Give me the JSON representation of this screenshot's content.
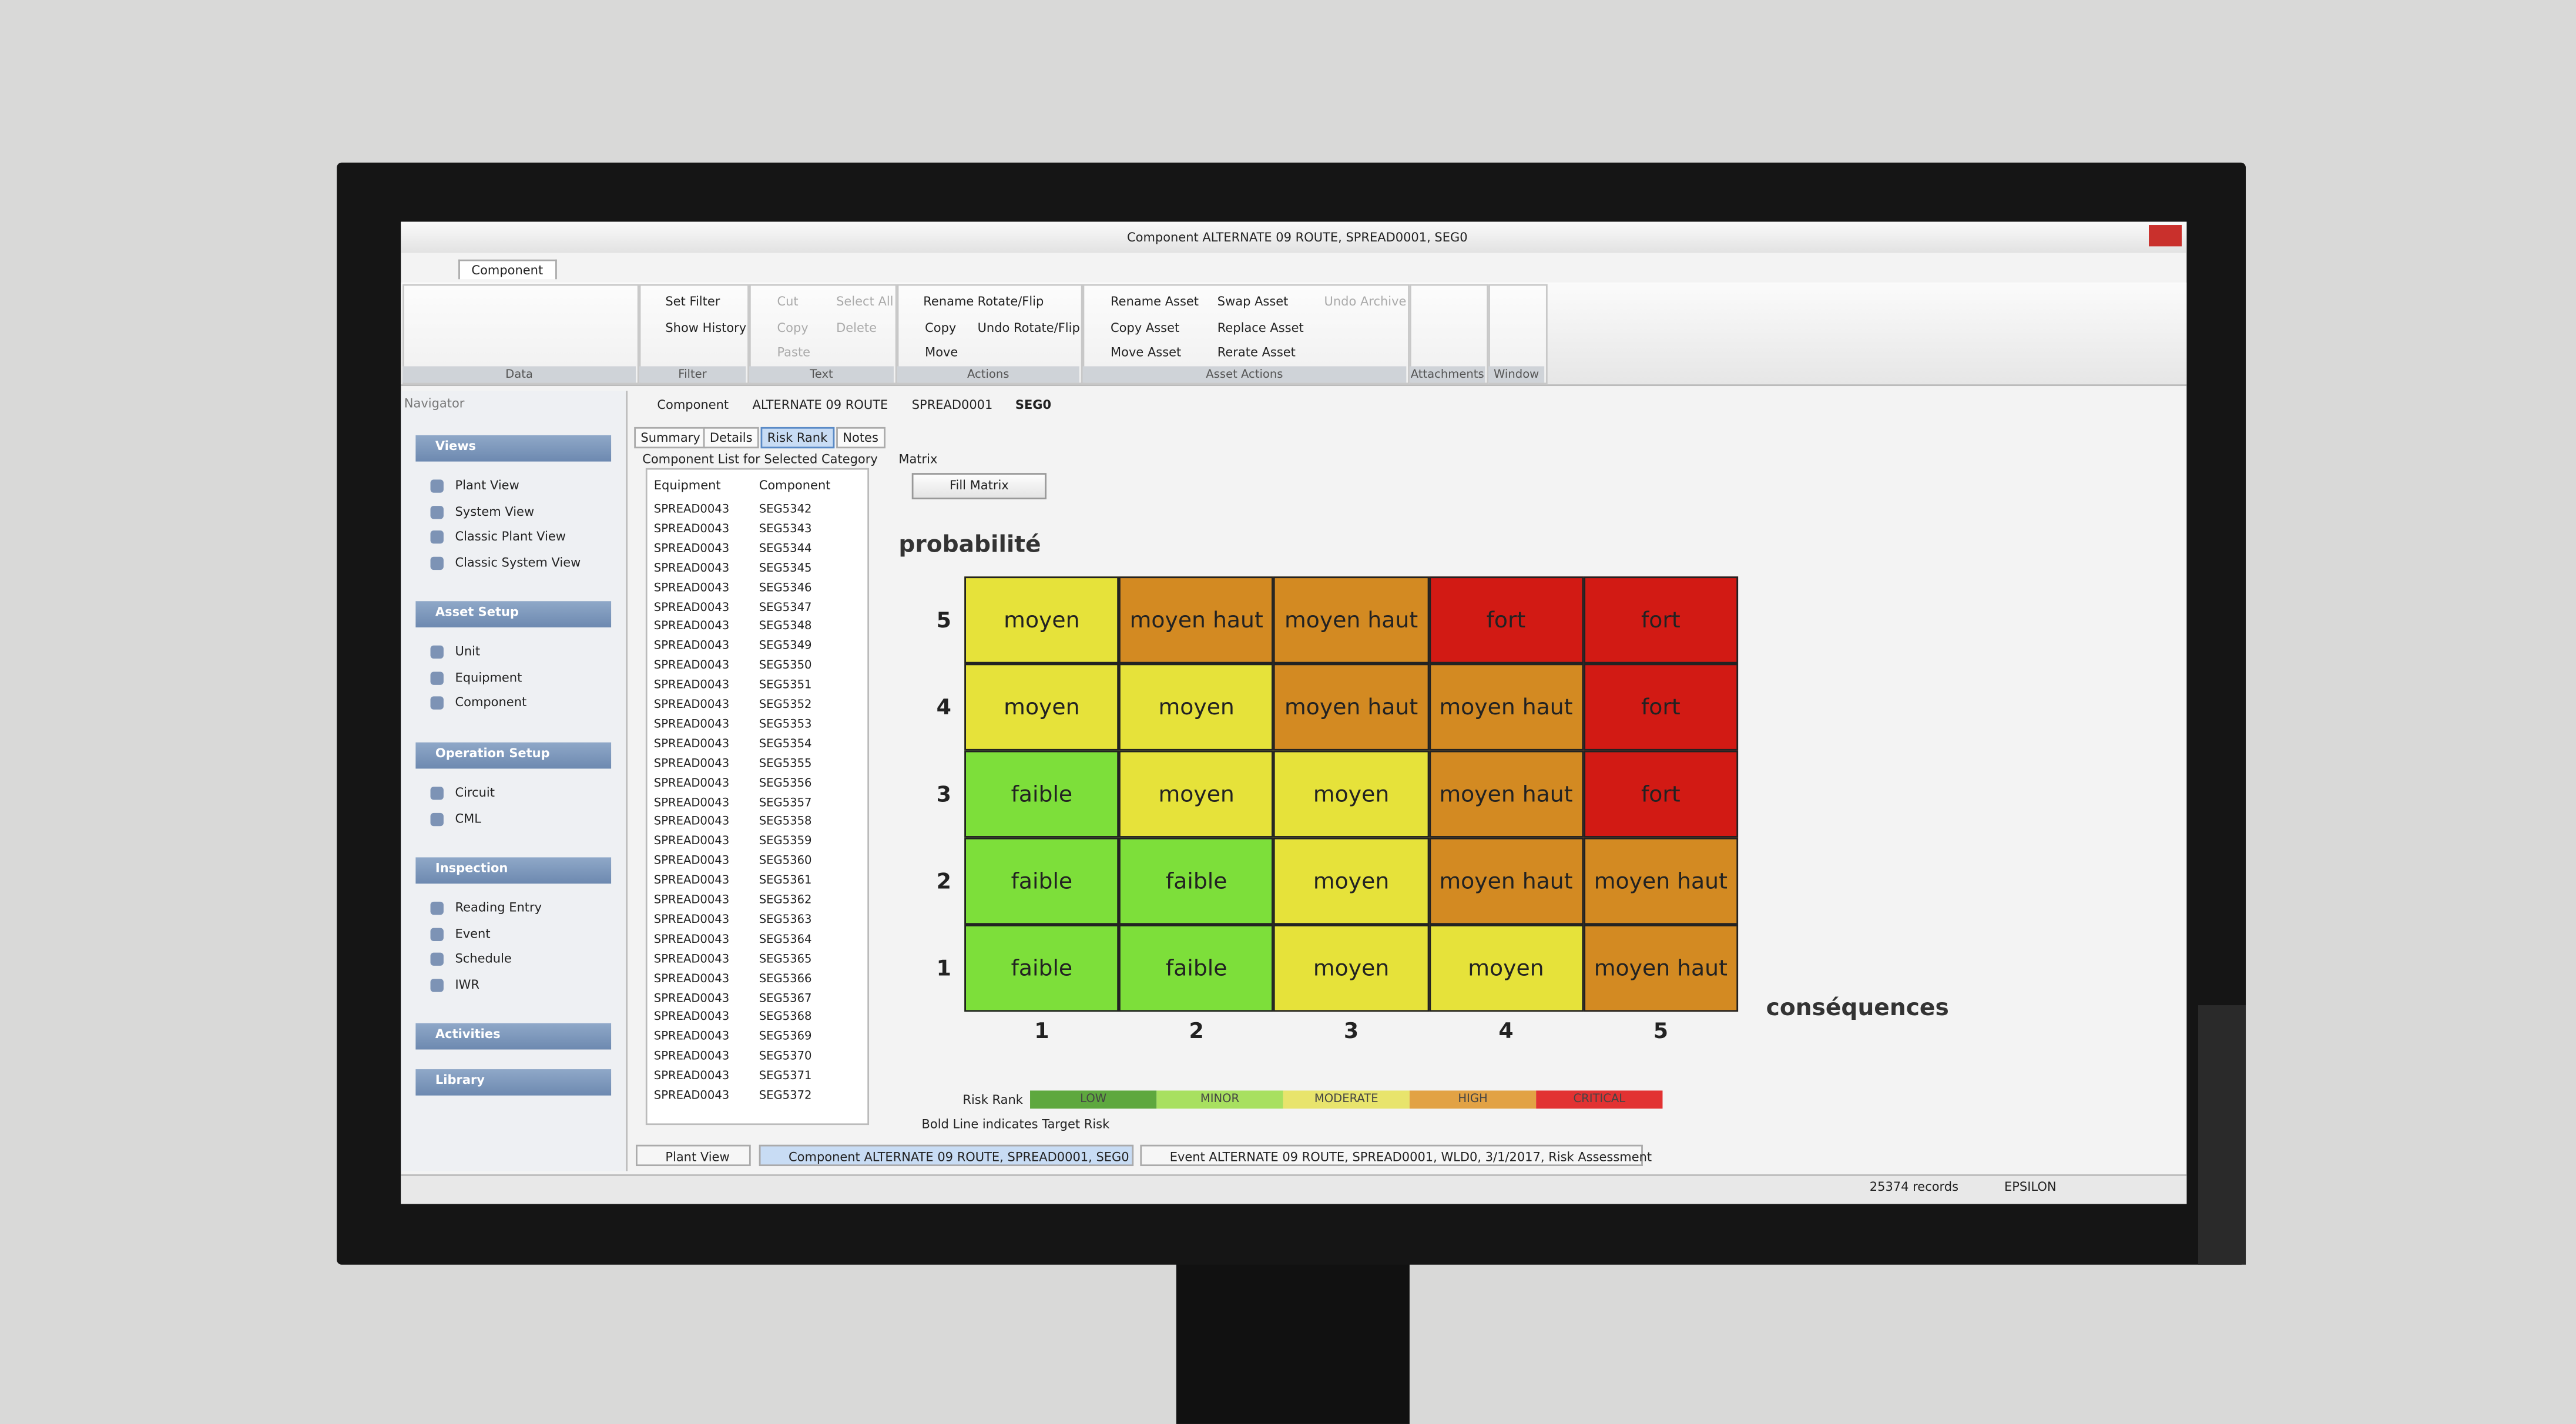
{
  "window": {
    "title": "Component  ALTERNATE 09 ROUTE, SPREAD0001, SEG0"
  },
  "ribbon": {
    "tab": "Component",
    "groups": [
      {
        "label": "Data",
        "items": []
      },
      {
        "label": "Filter",
        "items": [
          "Set Filter",
          "Show History"
        ]
      },
      {
        "label": "Text",
        "items": [
          "Cut",
          "Select All",
          "Copy",
          "Delete",
          "Paste"
        ]
      },
      {
        "label": "Actions",
        "items": [
          "Rename",
          "Rotate/Flip",
          "Copy",
          "Undo Rotate/Flip",
          "Move"
        ]
      },
      {
        "label": "Asset Actions",
        "items": [
          "Rename Asset",
          "Swap Asset",
          "Undo Archive",
          "Copy Asset",
          "Replace Asset",
          "Move Asset",
          "Rerate Asset"
        ]
      },
      {
        "label": "Attachments",
        "items": []
      },
      {
        "label": "Window",
        "items": []
      }
    ]
  },
  "navigator": {
    "title": "Navigator",
    "sections": [
      {
        "title": "Views",
        "items": [
          "Plant View",
          "System View",
          "Classic Plant View",
          "Classic System View"
        ]
      },
      {
        "title": "Asset Setup",
        "items": [
          "Unit",
          "Equipment",
          "Component"
        ]
      },
      {
        "title": "Operation Setup",
        "items": [
          "Circuit",
          "CML"
        ]
      },
      {
        "title": "Inspection",
        "items": [
          "Reading Entry",
          "Event",
          "Schedule",
          "IWR"
        ]
      },
      {
        "title": "Activities",
        "items": []
      },
      {
        "title": "Library",
        "items": []
      }
    ]
  },
  "breadcrumb": [
    "Component",
    "ALTERNATE 09 ROUTE",
    "SPREAD0001",
    "SEG0"
  ],
  "tabs": [
    "Summary",
    "Details",
    "Risk Rank",
    "Notes"
  ],
  "component_list": {
    "title": "Component List for Selected Category",
    "headers": [
      "Equipment",
      "Component"
    ],
    "rows": [
      [
        "SPREAD0043",
        "SEG5342"
      ],
      [
        "SPREAD0043",
        "SEG5343"
      ],
      [
        "SPREAD0043",
        "SEG5344"
      ],
      [
        "SPREAD0043",
        "SEG5345"
      ],
      [
        "SPREAD0043",
        "SEG5346"
      ],
      [
        "SPREAD0043",
        "SEG5347"
      ],
      [
        "SPREAD0043",
        "SEG5348"
      ],
      [
        "SPREAD0043",
        "SEG5349"
      ],
      [
        "SPREAD0043",
        "SEG5350"
      ],
      [
        "SPREAD0043",
        "SEG5351"
      ],
      [
        "SPREAD0043",
        "SEG5352"
      ],
      [
        "SPREAD0043",
        "SEG5353"
      ],
      [
        "SPREAD0043",
        "SEG5354"
      ],
      [
        "SPREAD0043",
        "SEG5355"
      ],
      [
        "SPREAD0043",
        "SEG5356"
      ],
      [
        "SPREAD0043",
        "SEG5357"
      ],
      [
        "SPREAD0043",
        "SEG5358"
      ],
      [
        "SPREAD0043",
        "SEG5359"
      ],
      [
        "SPREAD0043",
        "SEG5360"
      ],
      [
        "SPREAD0043",
        "SEG5361"
      ],
      [
        "SPREAD0043",
        "SEG5362"
      ],
      [
        "SPREAD0043",
        "SEG5363"
      ],
      [
        "SPREAD0043",
        "SEG5364"
      ],
      [
        "SPREAD0043",
        "SEG5365"
      ],
      [
        "SPREAD0043",
        "SEG5366"
      ],
      [
        "SPREAD0043",
        "SEG5367"
      ],
      [
        "SPREAD0043",
        "SEG5368"
      ],
      [
        "SPREAD0043",
        "SEG5369"
      ],
      [
        "SPREAD0043",
        "SEG5370"
      ],
      [
        "SPREAD0043",
        "SEG5371"
      ],
      [
        "SPREAD0043",
        "SEG5372"
      ]
    ]
  },
  "matrix": {
    "label": "Matrix",
    "button": "Fill Matrix",
    "y_label": "probabilité",
    "x_label": "conséquences",
    "row_labels": [
      "5",
      "4",
      "3",
      "2",
      "1"
    ],
    "col_labels": [
      "1",
      "2",
      "3",
      "4",
      "5"
    ],
    "rows": [
      [
        {
          "label": "moyen",
          "color": "#e6e23a"
        },
        {
          "label": "moyen haut",
          "color": "#d38a22"
        },
        {
          "label": "moyen haut",
          "color": "#d38a22"
        },
        {
          "label": "fort",
          "color": "#d21a14"
        },
        {
          "label": "fort",
          "color": "#d21a14"
        }
      ],
      [
        {
          "label": "moyen",
          "color": "#e6e23a"
        },
        {
          "label": "moyen",
          "color": "#e6e23a"
        },
        {
          "label": "moyen haut",
          "color": "#d38a22"
        },
        {
          "label": "moyen haut",
          "color": "#d38a22"
        },
        {
          "label": "fort",
          "color": "#d21a14"
        }
      ],
      [
        {
          "label": "faible",
          "color": "#7ddf3a"
        },
        {
          "label": "moyen",
          "color": "#e6e23a"
        },
        {
          "label": "moyen",
          "color": "#e6e23a"
        },
        {
          "label": "moyen haut",
          "color": "#d38a22"
        },
        {
          "label": "fort",
          "color": "#d21a14"
        }
      ],
      [
        {
          "label": "faible",
          "color": "#7ddf3a"
        },
        {
          "label": "faible",
          "color": "#7ddf3a"
        },
        {
          "label": "moyen",
          "color": "#e6e23a"
        },
        {
          "label": "moyen haut",
          "color": "#d38a22"
        },
        {
          "label": "moyen haut",
          "color": "#d38a22"
        }
      ],
      [
        {
          "label": "faible",
          "color": "#7ddf3a"
        },
        {
          "label": "faible",
          "color": "#7ddf3a"
        },
        {
          "label": "moyen",
          "color": "#e6e23a"
        },
        {
          "label": "moyen",
          "color": "#e6e23a"
        },
        {
          "label": "moyen haut",
          "color": "#d38a22"
        }
      ]
    ]
  },
  "risk_legend": {
    "label": "Risk Rank",
    "items": [
      {
        "label": "LOW",
        "color": "#5ea83e"
      },
      {
        "label": "MINOR",
        "color": "#a8e060"
      },
      {
        "label": "MODERATE",
        "color": "#e8e46c"
      },
      {
        "label": "HIGH",
        "color": "#e2a244"
      },
      {
        "label": "CRITICAL",
        "color": "#e23232"
      }
    ],
    "note": "Bold Line indicates Target Risk"
  },
  "doc_tabs": [
    "Plant View",
    "Component  ALTERNATE 09 ROUTE, SPREAD0001, SEG0",
    "Event  ALTERNATE 09 ROUTE, SPREAD0001, WLD0, 3/1/2017, Risk Assessment"
  ],
  "status": [
    "25374 records",
    "EPSILON"
  ]
}
